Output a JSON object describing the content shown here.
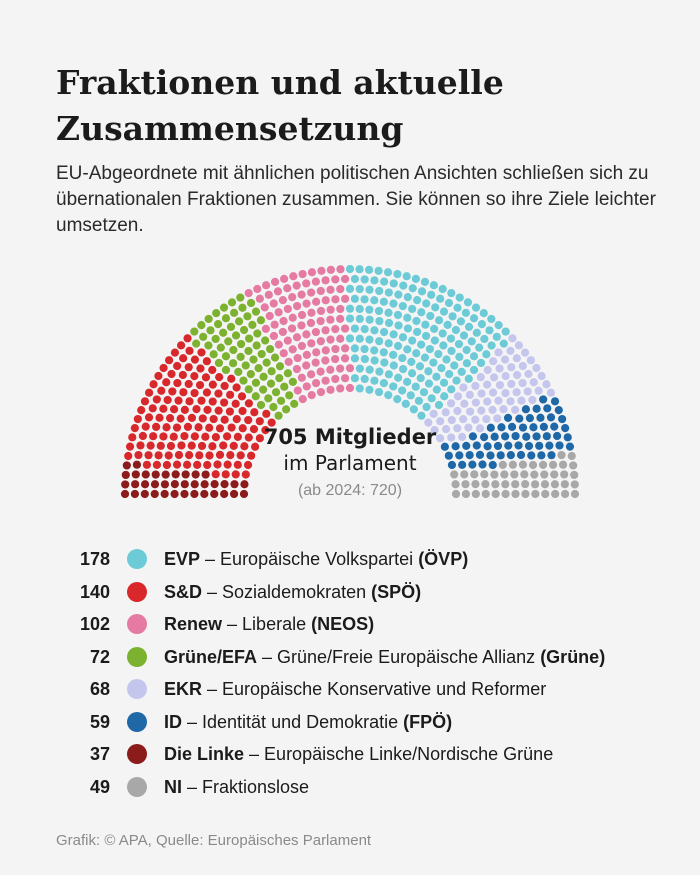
{
  "title": "Fraktionen und aktuelle Zusammensetzung",
  "subtitle": "EU-Abgeordnete mit ähnlichen politischen Ansichten schließen sich zu übernationalen Fraktionen zusammen. Sie können so ihre Ziele leichter umsetzen.",
  "center": {
    "main": "705 Mitglieder",
    "sub": "im Parlament",
    "note": "(ab 2024: 720)"
  },
  "footer": "Grafik: © APA, Quelle: Europäisches Parlament",
  "chart_data": {
    "type": "parliament",
    "total": 705,
    "seat_order": [
      "Die Linke",
      "S&D",
      "Grüne/EFA",
      "Renew",
      "EVP",
      "EKR",
      "ID",
      "NI"
    ],
    "parties": [
      {
        "count": 178,
        "abbr": "EVP",
        "sep": " – ",
        "name": "Europäische Volkspartei",
        "national": "(ÖVP)",
        "color": "#6ccbd6"
      },
      {
        "count": 140,
        "abbr": "S&D",
        "sep": " – ",
        "name": "Sozialdemokraten",
        "national": "(SPÖ)",
        "color": "#d8282c"
      },
      {
        "count": 102,
        "abbr": "Renew",
        "sep": " – ",
        "name": "Liberale",
        "national": "(NEOS)",
        "color": "#e57aa3"
      },
      {
        "count": 72,
        "abbr": "Grüne/EFA",
        "sep": " – ",
        "name": "Grüne/Freie Europäische Allianz",
        "national": "(Grüne)",
        "color": "#7cb22f"
      },
      {
        "count": 68,
        "abbr": "EKR",
        "sep": " – ",
        "name": "Europäische Konservative und Reformer",
        "national": "",
        "color": "#c5c6ee"
      },
      {
        "count": 59,
        "abbr": "ID",
        "sep": " – ",
        "name": "Identität und Demokratie",
        "national": "(FPÖ)",
        "color": "#1e68a8"
      },
      {
        "count": 37,
        "abbr": "Die Linke",
        "sep": " – ",
        "name": "Europäische Linke/Nordische Grüne",
        "national": "",
        "color": "#8c1b1b"
      },
      {
        "count": 49,
        "abbr": "NI",
        "sep": " – ",
        "name": "Fraktionslose",
        "national": "",
        "color": "#a8a8a8"
      }
    ]
  }
}
